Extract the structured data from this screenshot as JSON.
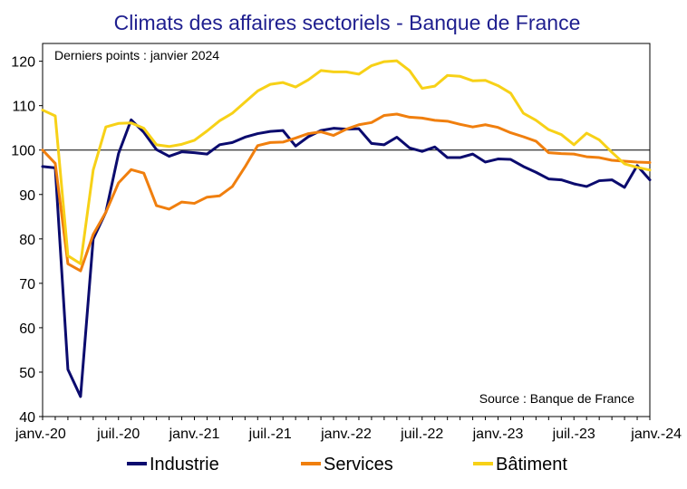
{
  "chart_data": {
    "type": "line",
    "title": "Climats des affaires sectoriels  - Banque de France",
    "note": "Derniers points : janvier 2024",
    "source": "Source : Banque de France",
    "xlabel": "",
    "ylabel": "",
    "ylim": [
      40,
      124
    ],
    "yticks": [
      40,
      50,
      60,
      70,
      80,
      90,
      100,
      110,
      120
    ],
    "reference_line": 100,
    "xtick_labels": [
      "janv.-20",
      "juil.-20",
      "janv.-21",
      "juil.-21",
      "janv.-22",
      "juil.-22",
      "janv.-23",
      "juil.-23",
      "janv.-24"
    ],
    "xtick_positions": [
      0,
      6,
      12,
      18,
      24,
      30,
      36,
      42,
      48
    ],
    "x_count": 49,
    "legend_position": "bottom",
    "series": [
      {
        "name": "Industrie",
        "color": "#0b0b6e",
        "values": [
          96.3,
          96,
          50.6,
          44.5,
          80,
          86,
          99.2,
          106.8,
          104,
          100.1,
          98.6,
          99.6,
          99.4,
          99.1,
          101.2,
          101.7,
          102.9,
          103.7,
          104.2,
          104.4,
          100.9,
          103,
          104.4,
          104.9,
          104.7,
          104.8,
          101.5,
          101.2,
          102.9,
          100.5,
          99.7,
          100.7,
          98.3,
          98.3,
          99.1,
          97.3,
          98,
          97.9,
          96.3,
          95,
          93.5,
          93.3,
          92.4,
          91.8,
          93.1,
          93.3,
          91.6,
          96.5,
          93.3
        ]
      },
      {
        "name": "Services",
        "color": "#f07f0e",
        "values": [
          100,
          97,
          74.4,
          72.8,
          81,
          86,
          92.6,
          95.6,
          94.8,
          87.5,
          86.7,
          88.3,
          88,
          89.4,
          89.7,
          91.8,
          96.2,
          101,
          101.7,
          101.8,
          102.7,
          103.7,
          104.1,
          103.3,
          104.7,
          105.7,
          106.2,
          107.8,
          108.1,
          107.4,
          107.2,
          106.7,
          106.5,
          105.8,
          105.2,
          105.7,
          105.1,
          103.9,
          103,
          102,
          99.4,
          99.2,
          99.1,
          98.5,
          98.3,
          97.7,
          97.5,
          97.3,
          97.2
        ]
      },
      {
        "name": "Bâtiment",
        "color": "#f7d117",
        "values": [
          109,
          107.7,
          76.2,
          74.4,
          95.5,
          105.2,
          106,
          106.1,
          104.9,
          101.2,
          100.8,
          101.3,
          102.2,
          104.3,
          106.6,
          108.3,
          110.8,
          113.3,
          114.8,
          115.2,
          114.2,
          115.8,
          117.9,
          117.6,
          117.6,
          117.1,
          119,
          119.9,
          120.1,
          117.9,
          113.9,
          114.4,
          116.8,
          116.6,
          115.6,
          115.7,
          114.5,
          112.8,
          108.3,
          106.7,
          104.6,
          103.5,
          101.2,
          103.8,
          102.3,
          99.5,
          96.9,
          96.1,
          95.5
        ]
      }
    ]
  }
}
